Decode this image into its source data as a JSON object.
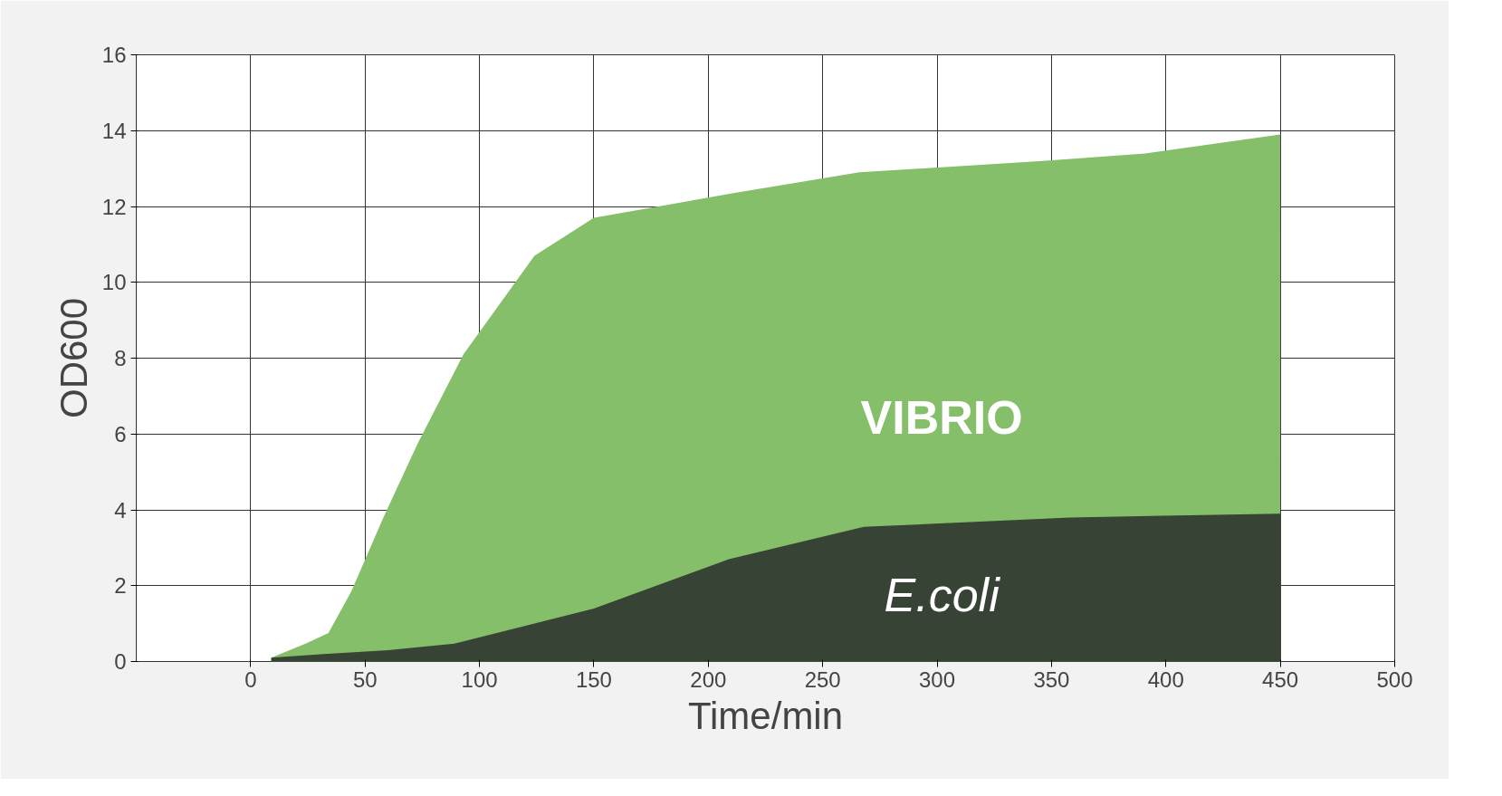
{
  "chart_data": {
    "type": "area",
    "xlabel": "Time/min",
    "ylabel": "OD600",
    "xlim": [
      -50,
      500
    ],
    "ylim": [
      0,
      16
    ],
    "xticks": [
      0,
      50,
      100,
      150,
      200,
      250,
      300,
      350,
      400,
      450,
      500
    ],
    "yticks": [
      0,
      2,
      4,
      6,
      8,
      10,
      12,
      14,
      16
    ],
    "grid": true,
    "series": [
      {
        "name": "VIBRIO",
        "color": "#85bf69",
        "x": [
          9,
          24,
          34,
          44,
          58,
          73,
          93,
          124,
          150,
          211,
          266,
          346,
          391,
          450
        ],
        "values": [
          0.1,
          0.47,
          0.75,
          1.85,
          3.8,
          5.75,
          8.1,
          10.7,
          11.7,
          12.35,
          12.9,
          13.2,
          13.4,
          13.9
        ]
      },
      {
        "name": "E.coli",
        "color": "#374335",
        "x": [
          9,
          32,
          60,
          89,
          150,
          209,
          268,
          358,
          450
        ],
        "values": [
          0.1,
          0.2,
          0.3,
          0.47,
          1.4,
          2.7,
          3.55,
          3.8,
          3.9
        ]
      }
    ]
  }
}
